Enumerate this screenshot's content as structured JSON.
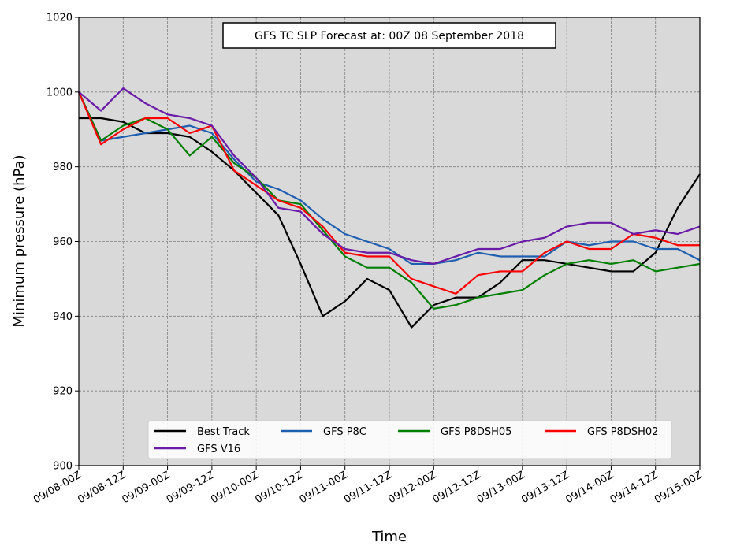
{
  "chart_data": {
    "type": "line",
    "title": "GFS TC SLP Forecast at: 00Z 08 September 2018",
    "xlabel": "Time",
    "ylabel": "Minimum pressure (hPa)",
    "ylim": [
      900,
      1020
    ],
    "yticks": [
      900,
      920,
      940,
      960,
      980,
      1000,
      1020
    ],
    "x_tick_labels": [
      "09/08-00Z",
      "09/08-12Z",
      "09/09-00Z",
      "09/09-12Z",
      "09/10-00Z",
      "09/10-12Z",
      "09/11-00Z",
      "09/11-12Z",
      "09/12-00Z",
      "09/12-12Z",
      "09/13-00Z",
      "09/13-12Z",
      "09/14-00Z",
      "09/14-12Z",
      "09/15-00Z"
    ],
    "x_step_hours": 6,
    "grid": true,
    "legend_position": "bottom-center",
    "background": "#d9d9d9",
    "series": [
      {
        "name": "Best Track",
        "color": "#000000",
        "values": [
          993,
          993,
          992,
          989,
          989,
          988,
          984,
          979,
          973,
          967,
          954,
          940,
          944,
          950,
          947,
          937,
          943,
          945,
          945,
          949,
          955,
          955,
          954,
          953,
          952,
          952,
          957,
          969,
          978
        ]
      },
      {
        "name": "GFS P8C",
        "color": "#1f5fb0",
        "values": [
          1000,
          987,
          988,
          989,
          990,
          991,
          989,
          982,
          976,
          974,
          971,
          966,
          962,
          960,
          958,
          954,
          954,
          955,
          957,
          956,
          956,
          956,
          960,
          959,
          960,
          960,
          958,
          958,
          955
        ]
      },
      {
        "name": "GFS P8DSH05",
        "color": "#007f00",
        "values": [
          1000,
          987,
          991,
          993,
          990,
          983,
          988,
          981,
          977,
          971,
          970,
          963,
          956,
          953,
          953,
          949,
          942,
          943,
          945,
          946,
          947,
          951,
          954,
          955,
          954,
          955,
          952,
          953,
          954
        ]
      },
      {
        "name": "GFS P8DSH02",
        "color": "#ff0000",
        "values": [
          1000,
          986,
          990,
          993,
          993,
          989,
          991,
          979,
          975,
          971,
          969,
          964,
          957,
          956,
          956,
          950,
          948,
          946,
          951,
          952,
          952,
          957,
          960,
          958,
          958,
          962,
          961,
          959,
          959
        ]
      },
      {
        "name": "GFS V16",
        "color": "#6a1ba8",
        "values": [
          1000,
          995,
          1001,
          997,
          994,
          993,
          991,
          983,
          977,
          969,
          968,
          962,
          958,
          957,
          957,
          955,
          954,
          956,
          958,
          958,
          960,
          961,
          964,
          965,
          965,
          962,
          963,
          962,
          964
        ]
      }
    ]
  }
}
